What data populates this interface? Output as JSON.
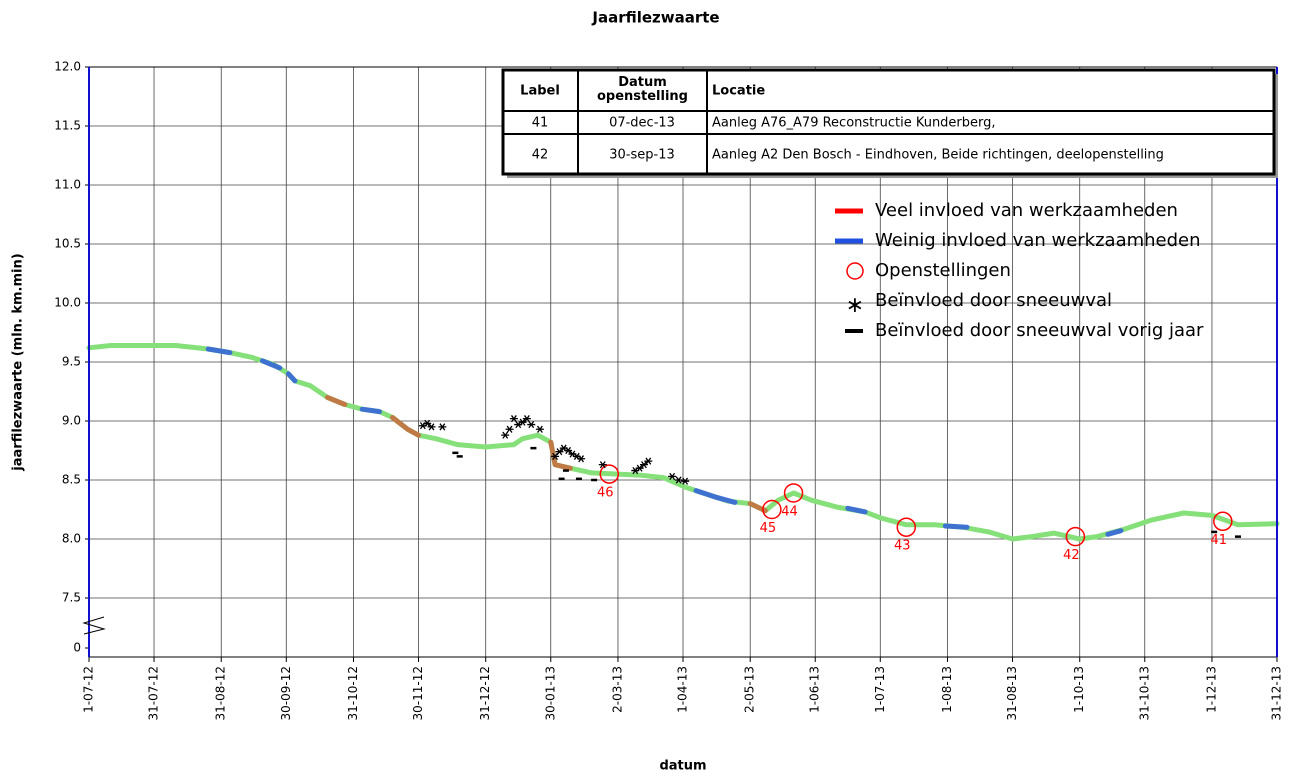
{
  "chart_data": {
    "type": "line",
    "title": "Jaarfilezwaarte",
    "x_label": "datum",
    "y_label": "jaarfilezwaarte (mln. km.min)",
    "xlim": [
      0,
      548
    ],
    "xticks": [
      {
        "value": 0,
        "label": "1-07-12"
      },
      {
        "value": 30,
        "label": "31-07-12"
      },
      {
        "value": 61,
        "label": "31-08-12"
      },
      {
        "value": 91,
        "label": "30-09-12"
      },
      {
        "value": 122,
        "label": "31-10-12"
      },
      {
        "value": 152,
        "label": "30-11-12"
      },
      {
        "value": 183,
        "label": "31-12-12"
      },
      {
        "value": 213,
        "label": "30-01-13"
      },
      {
        "value": 244,
        "label": "2-03-13"
      },
      {
        "value": 274,
        "label": "1-04-13"
      },
      {
        "value": 305,
        "label": "2-05-13"
      },
      {
        "value": 335,
        "label": "1-06-13"
      },
      {
        "value": 365,
        "label": "1-07-13"
      },
      {
        "value": 396,
        "label": "1-08-13"
      },
      {
        "value": 426,
        "label": "31-08-13"
      },
      {
        "value": 457,
        "label": "1-10-13"
      },
      {
        "value": 487,
        "label": "31-10-13"
      },
      {
        "value": 518,
        "label": "1-12-13"
      },
      {
        "value": 548,
        "label": "31-12-13"
      }
    ],
    "ylim": [
      0,
      12
    ],
    "axis_break": [
      0,
      7.5
    ],
    "yticks": [
      0,
      7.5,
      {
        "value": 8,
        "label": "8.0"
      },
      8.5,
      {
        "value": 9,
        "label": "9.0"
      },
      9.5,
      {
        "value": 10,
        "label": "10.0"
      },
      10.5,
      {
        "value": 11,
        "label": "11.0"
      },
      11.5,
      {
        "value": 12,
        "label": "12.0"
      }
    ],
    "grid": true,
    "trend": {
      "color": "#86e07a",
      "x": [
        0,
        10,
        25,
        40,
        55,
        65,
        75,
        85,
        92,
        95,
        102,
        110,
        118,
        126,
        134,
        140,
        147,
        152,
        160,
        170,
        183,
        196,
        200,
        207,
        213,
        215,
        222,
        232,
        244,
        255,
        265,
        275,
        285,
        295,
        305,
        312,
        318,
        325,
        333,
        345,
        358,
        365,
        377,
        390,
        403,
        415,
        426,
        435,
        445,
        457,
        465,
        477,
        490,
        505,
        518,
        530,
        548
      ],
      "values": [
        9.62,
        9.64,
        9.64,
        9.64,
        9.61,
        9.58,
        9.54,
        9.48,
        9.4,
        9.34,
        9.3,
        9.2,
        9.14,
        9.1,
        9.08,
        9.03,
        8.93,
        8.88,
        8.85,
        8.8,
        8.78,
        8.8,
        8.85,
        8.88,
        8.82,
        8.63,
        8.6,
        8.56,
        8.55,
        8.54,
        8.52,
        8.44,
        8.38,
        8.32,
        8.3,
        8.24,
        8.33,
        8.39,
        8.33,
        8.27,
        8.23,
        8.18,
        8.12,
        8.12,
        8.1,
        8.06,
        8.0,
        8.02,
        8.05,
        8.0,
        8.02,
        8.08,
        8.16,
        8.22,
        8.2,
        8.12,
        8.13
      ]
    },
    "series": [
      {
        "name": "Veel invloed van werkzaamheden",
        "style": "line",
        "color": "#c07a45",
        "legend_color": "#ff0000",
        "x": [
          110,
          118,
          129,
          140,
          147,
          152,
          180,
          213,
          215,
          222,
          260,
          305,
          312
        ],
        "values": [
          9.2,
          9.14,
          null,
          9.03,
          8.93,
          8.88,
          null,
          8.82,
          8.63,
          8.6,
          null,
          8.3,
          8.24
        ]
      },
      {
        "name": "Weinig invloed van werkzaamheden",
        "style": "line",
        "color": "#3f72d0",
        "legend_color": "#2050e0",
        "x": [
          55,
          65,
          72,
          80,
          88,
          90,
          92,
          95,
          110,
          126,
          134,
          200,
          280,
          290,
          298,
          320,
          350,
          358,
          380,
          395,
          405,
          440,
          470,
          476
        ],
        "values": [
          9.61,
          9.58,
          null,
          9.51,
          9.45,
          null,
          9.4,
          9.34,
          null,
          9.1,
          9.08,
          null,
          8.41,
          8.35,
          8.31,
          null,
          8.26,
          8.23,
          null,
          8.11,
          8.1,
          null,
          8.04,
          8.07
        ]
      },
      {
        "name": "Openstellingen",
        "style": "circle",
        "color": "#ff0000",
        "x": [
          240,
          315,
          325,
          377,
          455,
          523
        ],
        "values": [
          8.55,
          8.25,
          8.39,
          8.1,
          8.02,
          8.15
        ],
        "labels": [
          "46",
          "45",
          "44",
          "43",
          "42",
          "41"
        ]
      },
      {
        "name": "Beïnvloed door sneeuwval",
        "style": "asterisk",
        "color": "#000000",
        "x": [
          154,
          156,
          158,
          163,
          192,
          194,
          196,
          198,
          200,
          202,
          204,
          208,
          215,
          217,
          219,
          221,
          223,
          225,
          227,
          237,
          252,
          254,
          256,
          258,
          269,
          272,
          275
        ],
        "values": [
          8.96,
          8.98,
          8.95,
          8.95,
          8.88,
          8.93,
          9.02,
          8.97,
          8.99,
          9.02,
          8.97,
          8.93,
          8.7,
          8.74,
          8.77,
          8.75,
          8.72,
          8.7,
          8.68,
          8.63,
          8.58,
          8.6,
          8.63,
          8.66,
          8.53,
          8.5,
          8.49
        ]
      },
      {
        "name": "Beïnvloed door sneeuwval vorig jaar",
        "style": "dash",
        "color": "#000000",
        "x": [
          169,
          171,
          205,
          218,
          220,
          226,
          233,
          519,
          530
        ],
        "values": [
          8.73,
          8.7,
          8.77,
          8.51,
          8.58,
          8.51,
          8.5,
          8.06,
          8.02
        ]
      }
    ],
    "table": {
      "columns": [
        "Label",
        "Datum openstelling",
        "Locatie"
      ],
      "rows": [
        [
          "41",
          "07-dec-13",
          "Aanleg A76_A79 Reconstructie Kunderberg,"
        ],
        [
          "42",
          "30-sep-13",
          "Aanleg A2 Den Bosch - Eindhoven, Beide richtingen, deelopenstelling"
        ]
      ]
    }
  }
}
